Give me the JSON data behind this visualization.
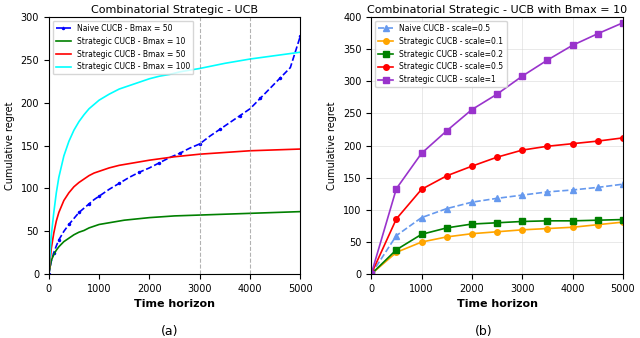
{
  "left": {
    "title": "Combinatorial Strategic - UCB",
    "xlabel": "Time horizon",
    "ylabel": "Cumulative regret",
    "xlim": [
      0,
      5000
    ],
    "ylim": [
      0,
      300
    ],
    "yticks": [
      0,
      50,
      100,
      150,
      200,
      250,
      300
    ],
    "xticks": [
      0,
      1000,
      2000,
      3000,
      4000,
      5000
    ],
    "vlines": [
      3000,
      4000
    ],
    "series": [
      {
        "label": "Naive CUCB - Bmax = 50",
        "color": "blue",
        "linestyle": "--",
        "marker": ".",
        "markersize": 3,
        "x": [
          0,
          50,
          100,
          150,
          200,
          300,
          400,
          500,
          600,
          700,
          800,
          900,
          1000,
          1200,
          1400,
          1600,
          1800,
          2000,
          2200,
          2400,
          2600,
          2800,
          3000,
          3200,
          3400,
          3600,
          3800,
          4000,
          4200,
          4400,
          4600,
          4800,
          5000
        ],
        "y": [
          0,
          15,
          25,
          33,
          40,
          50,
          58,
          65,
          72,
          77,
          82,
          87,
          91,
          99,
          106,
          113,
          119,
          124,
          130,
          136,
          141,
          147,
          152,
          161,
          169,
          177,
          185,
          193,
          205,
          217,
          229,
          241,
          278
        ]
      },
      {
        "label": "Strategic CUCB - Bmax = 10",
        "color": "green",
        "linestyle": "-",
        "marker": null,
        "x": [
          0,
          50,
          100,
          150,
          200,
          300,
          400,
          500,
          600,
          700,
          800,
          900,
          1000,
          1500,
          2000,
          2500,
          3000,
          3500,
          4000,
          4500,
          5000
        ],
        "y": [
          0,
          16,
          23,
          28,
          32,
          38,
          42,
          46,
          49,
          51,
          54,
          56,
          58,
          63,
          66,
          68,
          69,
          70,
          71,
          72,
          73
        ]
      },
      {
        "label": "Strategic CUCB - Bmax = 50",
        "color": "red",
        "linestyle": "-",
        "marker": null,
        "x": [
          0,
          50,
          100,
          150,
          200,
          300,
          400,
          500,
          600,
          700,
          800,
          900,
          1000,
          1200,
          1400,
          1600,
          1800,
          2000,
          2500,
          3000,
          3500,
          4000,
          4500,
          5000
        ],
        "y": [
          0,
          30,
          48,
          62,
          72,
          86,
          95,
          102,
          107,
          111,
          115,
          118,
          120,
          124,
          127,
          129,
          131,
          133,
          137,
          140,
          142,
          144,
          145,
          146
        ]
      },
      {
        "label": "Strategic CUCB - Bmax = 100",
        "color": "cyan",
        "linestyle": "-",
        "marker": null,
        "x": [
          0,
          50,
          100,
          150,
          200,
          300,
          400,
          500,
          600,
          700,
          800,
          900,
          1000,
          1200,
          1400,
          1600,
          1800,
          2000,
          2200,
          2400,
          2600,
          2800,
          3000,
          3500,
          4000,
          4500,
          5000
        ],
        "y": [
          0,
          45,
          72,
          95,
          113,
          138,
          155,
          168,
          178,
          186,
          193,
          198,
          203,
          210,
          216,
          220,
          224,
          228,
          231,
          233,
          236,
          238,
          240,
          246,
          251,
          255,
          259
        ]
      }
    ]
  },
  "right": {
    "title": "Combinatorial Strategic - UCB with Bmax = 10",
    "xlabel": "Time horizon",
    "ylabel": "Cumulative regret",
    "xlim": [
      0,
      5000
    ],
    "ylim": [
      0,
      400
    ],
    "yticks": [
      0,
      50,
      100,
      150,
      200,
      250,
      300,
      350,
      400
    ],
    "xticks": [
      0,
      1000,
      2000,
      3000,
      4000,
      5000
    ],
    "series": [
      {
        "label": "Naive CUCB - scale=0.5",
        "color": "#6699ee",
        "linestyle": "--",
        "marker": "^",
        "markersize": 4,
        "x": [
          0,
          500,
          1000,
          1500,
          2000,
          2500,
          3000,
          3500,
          4000,
          4500,
          5000
        ],
        "y": [
          0,
          60,
          88,
          102,
          112,
          118,
          123,
          128,
          131,
          135,
          140
        ]
      },
      {
        "label": "Strategic CUCB - scale=0.1",
        "color": "orange",
        "linestyle": "-",
        "marker": "o",
        "markersize": 4,
        "x": [
          0,
          500,
          1000,
          1500,
          2000,
          2500,
          3000,
          3500,
          4000,
          4500,
          5000
        ],
        "y": [
          0,
          34,
          50,
          58,
          63,
          66,
          69,
          71,
          73,
          77,
          81
        ]
      },
      {
        "label": "Strategic CUCB - scale=0.2",
        "color": "green",
        "linestyle": "-",
        "marker": "s",
        "markersize": 4,
        "x": [
          0,
          500,
          1000,
          1500,
          2000,
          2500,
          3000,
          3500,
          4000,
          4500,
          5000
        ],
        "y": [
          0,
          38,
          62,
          72,
          78,
          80,
          82,
          83,
          83,
          84,
          85
        ]
      },
      {
        "label": "Strategic CUCB - scale=0.5",
        "color": "red",
        "linestyle": "-",
        "marker": "o",
        "markersize": 4,
        "x": [
          0,
          500,
          1000,
          1500,
          2000,
          2500,
          3000,
          3500,
          4000,
          4500,
          5000
        ],
        "y": [
          0,
          86,
          132,
          153,
          168,
          182,
          193,
          199,
          203,
          207,
          212
        ]
      },
      {
        "label": "Strategic CUCB - scale=1",
        "color": "#9933cc",
        "linestyle": "-",
        "marker": "s",
        "markersize": 4,
        "x": [
          0,
          500,
          1000,
          1500,
          2000,
          2500,
          3000,
          3500,
          4000,
          4500,
          5000
        ],
        "y": [
          0,
          133,
          188,
          223,
          256,
          280,
          308,
          333,
          356,
          374,
          391
        ]
      }
    ]
  },
  "subtitle_a": "(a)",
  "subtitle_b": "(b)"
}
